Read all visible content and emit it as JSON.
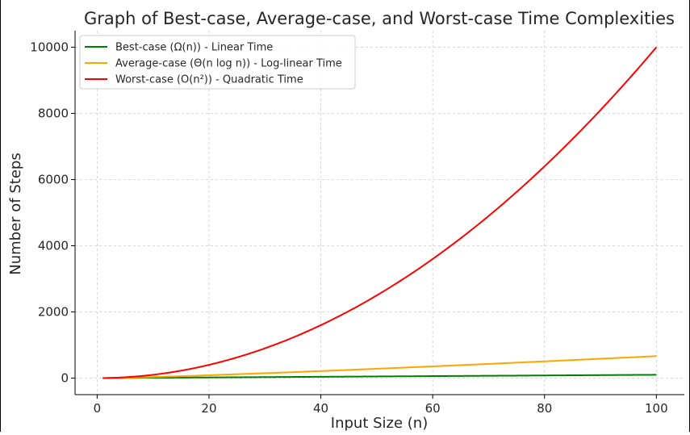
{
  "chart_data": {
    "type": "line",
    "title": "Graph of Best-case, Average-case, and Worst-case Time Complexities",
    "xlabel": "Input Size (n)",
    "ylabel": "Number of Steps",
    "xlim": [
      -3.95,
      105
    ],
    "ylim": [
      -500,
      10500
    ],
    "xticks": [
      0,
      20,
      40,
      60,
      80,
      100
    ],
    "yticks": [
      0,
      2000,
      4000,
      6000,
      8000,
      10000
    ],
    "grid": true,
    "legend_position": "top-left",
    "x_start": 1,
    "x_end": 100,
    "series": [
      {
        "name": "Best-case (Ω(n)) - Linear Time",
        "color": "#008000",
        "formula": "n",
        "samples": [
          {
            "x": 1,
            "y": 1
          },
          {
            "x": 20,
            "y": 20
          },
          {
            "x": 40,
            "y": 40
          },
          {
            "x": 60,
            "y": 60
          },
          {
            "x": 80,
            "y": 80
          },
          {
            "x": 100,
            "y": 100
          }
        ]
      },
      {
        "name": "Average-case (Θ(n log n)) - Log-linear Time",
        "color": "#FFA500",
        "formula": "n*log2(n)",
        "samples": [
          {
            "x": 1,
            "y": 0
          },
          {
            "x": 20,
            "y": 86
          },
          {
            "x": 40,
            "y": 213
          },
          {
            "x": 60,
            "y": 354
          },
          {
            "x": 80,
            "y": 506
          },
          {
            "x": 100,
            "y": 664
          }
        ]
      },
      {
        "name": "Worst-case (O(n²)) - Quadratic Time",
        "color": "#FF0000",
        "formula": "n^2",
        "samples": [
          {
            "x": 1,
            "y": 1
          },
          {
            "x": 20,
            "y": 400
          },
          {
            "x": 40,
            "y": 1600
          },
          {
            "x": 60,
            "y": 3600
          },
          {
            "x": 80,
            "y": 6400
          },
          {
            "x": 100,
            "y": 10000
          }
        ]
      }
    ]
  }
}
